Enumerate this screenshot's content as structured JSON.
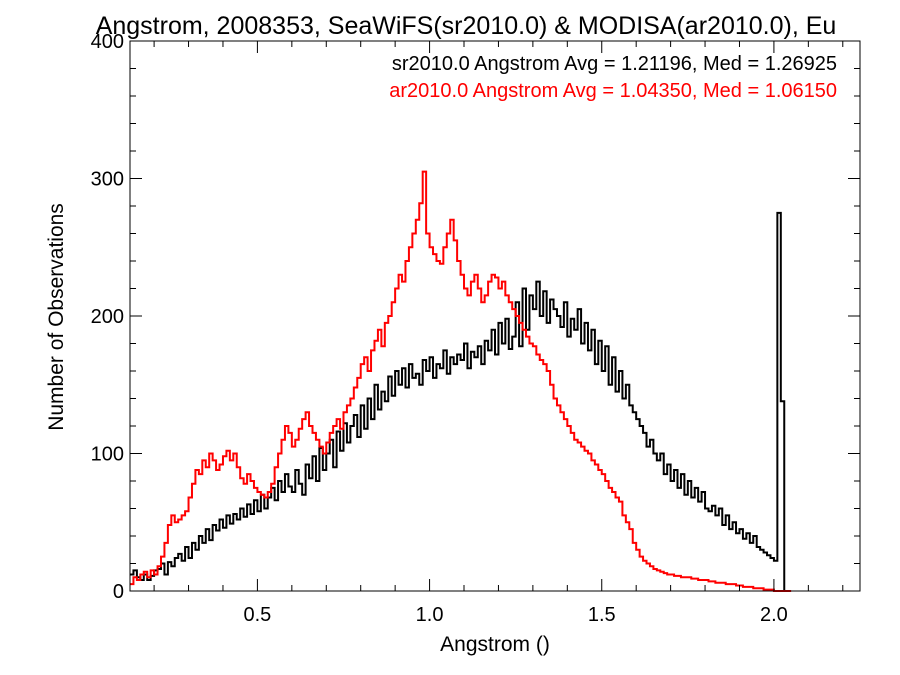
{
  "chart_data": {
    "type": "histogram",
    "title": "Angstrom, 2008353, SeaWiFS(sr2010.0) & MODISA(ar2010.0), Eu",
    "xlabel": "Angstrom ()",
    "ylabel": "Number of Observations",
    "xlim": [
      0.13,
      2.25
    ],
    "ylim": [
      0,
      400
    ],
    "xticks": [
      0.5,
      1.0,
      1.5,
      2.0
    ],
    "xtick_labels": [
      "0.5",
      "1.0",
      "1.5",
      "2.0"
    ],
    "yticks": [
      0,
      100,
      200,
      300,
      400
    ],
    "ytick_labels": [
      "0",
      "100",
      "200",
      "300",
      "400"
    ],
    "legend_placement": "top-right",
    "legend": [
      {
        "text": "sr2010.0 Angstrom Avg = 1.21196, Med = 1.26925",
        "color": "#000000"
      },
      {
        "text": "ar2010.0 Angstrom Avg = 1.04350, Med = 1.06150",
        "color": "#ff0000"
      }
    ],
    "series": [
      {
        "color": "#000000",
        "bin_width": 0.01,
        "x_start": 0.13,
        "values": [
          12,
          15,
          10,
          8,
          12,
          8,
          11,
          15,
          16,
          20,
          12,
          21,
          18,
          24,
          27,
          22,
          32,
          24,
          35,
          30,
          40,
          35,
          45,
          37,
          48,
          44,
          52,
          46,
          55,
          49,
          56,
          52,
          60,
          54,
          63,
          56,
          66,
          58,
          70,
          60,
          68,
          75,
          66,
          80,
          72,
          85,
          76,
          72,
          88,
          78,
          70,
          92,
          82,
          98,
          80,
          104,
          88,
          100,
          110,
          90,
          116,
          102,
          122,
          108,
          120,
          128,
          112,
          135,
          118,
          140,
          125,
          150,
          132,
          145,
          138,
          156,
          142,
          160,
          150,
          162,
          148,
          165,
          155,
          158,
          150,
          168,
          160,
          170,
          155,
          165,
          162,
          175,
          158,
          170,
          165,
          172,
          168,
          180,
          162,
          174,
          170,
          178,
          165,
          182,
          175,
          190,
          172,
          195,
          180,
          198,
          176,
          185,
          210,
          178,
          220,
          190,
          215,
          205,
          225,
          200,
          218,
          195,
          212,
          205,
          200,
          192,
          210,
          185,
          198,
          190,
          205,
          180,
          195,
          175,
          190,
          165,
          182,
          160,
          178,
          150,
          170,
          145,
          160,
          140,
          150,
          135,
          130,
          125,
          120,
          115,
          105,
          110,
          100,
          95,
          100,
          85,
          92,
          80,
          88,
          75,
          85,
          70,
          80,
          68,
          75,
          65,
          72,
          60,
          58,
          62,
          55,
          60,
          48,
          55,
          45,
          50,
          42,
          45,
          38,
          42,
          35,
          40,
          32,
          30,
          28,
          26,
          24,
          22,
          275,
          138,
          0
        ]
      },
      {
        "color": "#ff0000",
        "bin_width": 0.01,
        "x_start": 0.13,
        "values": [
          5,
          10,
          8,
          12,
          14,
          10,
          15,
          12,
          18,
          25,
          35,
          48,
          55,
          50,
          52,
          55,
          58,
          68,
          78,
          88,
          85,
          95,
          90,
          100,
          95,
          88,
          92,
          98,
          102,
          95,
          100,
          90,
          82,
          78,
          85,
          80,
          75,
          72,
          70,
          68,
          72,
          78,
          90,
          100,
          110,
          120,
          115,
          105,
          110,
          118,
          125,
          130,
          120,
          115,
          110,
          105,
          100,
          108,
          115,
          120,
          125,
          118,
          130,
          135,
          140,
          148,
          155,
          165,
          170,
          160,
          175,
          182,
          190,
          178,
          195,
          200,
          210,
          220,
          230,
          225,
          240,
          250,
          260,
          270,
          282,
          305,
          260,
          250,
          245,
          240,
          238,
          250,
          260,
          270,
          255,
          240,
          230,
          220,
          215,
          225,
          230,
          220,
          210,
          215,
          225,
          230,
          228,
          220,
          225,
          215,
          210,
          205,
          200,
          195,
          190,
          185,
          180,
          178,
          172,
          168,
          165,
          160,
          150,
          140,
          135,
          130,
          125,
          120,
          115,
          110,
          108,
          105,
          102,
          100,
          95,
          92,
          88,
          85,
          80,
          75,
          72,
          68,
          65,
          55,
          50,
          45,
          35,
          30,
          25,
          22,
          20,
          18,
          16,
          15,
          14,
          13,
          12,
          12,
          11,
          11,
          10,
          10,
          10,
          9,
          9,
          8,
          8,
          8,
          7,
          7,
          6,
          6,
          6,
          5,
          5,
          5,
          4,
          4,
          3,
          3,
          3,
          2,
          2,
          2,
          1,
          1,
          1,
          0,
          0,
          0,
          0,
          0
        ]
      }
    ]
  }
}
